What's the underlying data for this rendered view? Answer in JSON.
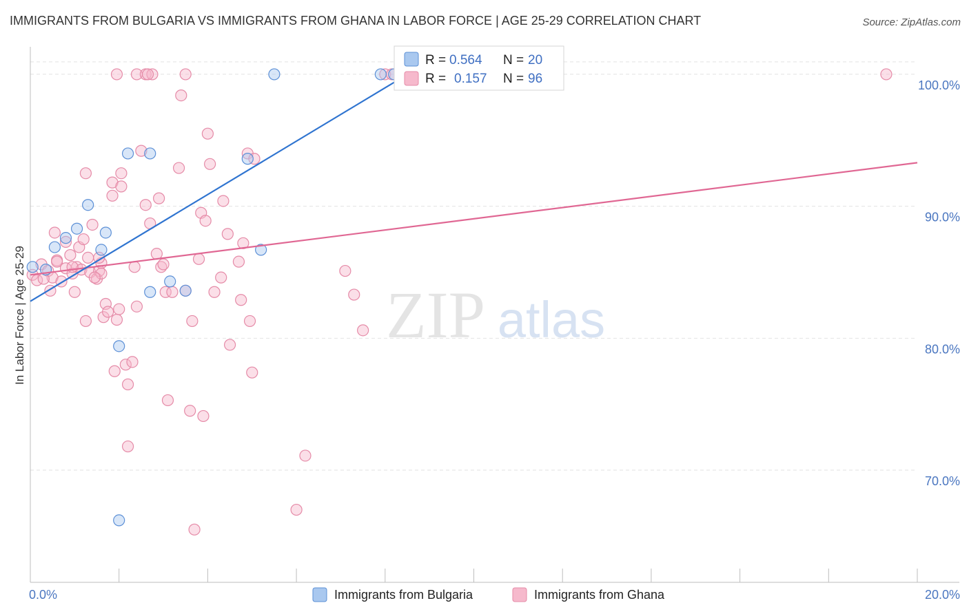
{
  "title": "IMMIGRANTS FROM BULGARIA VS IMMIGRANTS FROM GHANA IN LABOR FORCE | AGE 25-29 CORRELATION CHART",
  "source": "Source: ZipAtlas.com",
  "watermark": {
    "zip": "ZIP",
    "atlas": "atlas"
  },
  "colors": {
    "bulgaria_fill": "#a9c8ef",
    "bulgaria_stroke": "#5b8fd6",
    "bulgaria_line": "#2f74d0",
    "ghana_fill": "#f6b9cc",
    "ghana_stroke": "#e58aa7",
    "ghana_line": "#e06793",
    "tick_text": "#4a76c0"
  },
  "stats": {
    "r_label": "R =",
    "n_label": "N =",
    "bulgaria": {
      "r": "0.564",
      "n": "20"
    },
    "ghana": {
      "r": "0.157",
      "n": "96"
    }
  },
  "chart_data": {
    "type": "scatter",
    "xlabel": "",
    "ylabel": "In Labor Force | Age 25-29",
    "xlim": [
      0,
      20
    ],
    "ylim": [
      61.5,
      102.5
    ],
    "x_tick_labels": [
      {
        "value": 0,
        "label": "0.0%"
      },
      {
        "value": 20,
        "label": "20.0%"
      }
    ],
    "y_tick_labels": [
      {
        "value": 100,
        "label": "100.0%"
      },
      {
        "value": 90,
        "label": "90.0%"
      },
      {
        "value": 80,
        "label": "80.0%"
      },
      {
        "value": 70,
        "label": "70.0%"
      }
    ],
    "grid": true,
    "legend": [
      "Immigrants from Bulgaria",
      "Immigrants from Ghana"
    ],
    "series": [
      {
        "name": "Immigrants from Bulgaria",
        "trend": {
          "x": [
            0,
            9.0
          ],
          "y": [
            82.8,
            101.0
          ]
        },
        "points": [
          [
            0.05,
            85.4
          ],
          [
            0.35,
            85.2
          ],
          [
            0.55,
            86.9
          ],
          [
            0.8,
            87.6
          ],
          [
            1.05,
            88.3
          ],
          [
            1.3,
            90.1
          ],
          [
            1.6,
            86.7
          ],
          [
            1.7,
            88.0
          ],
          [
            2.2,
            94.0
          ],
          [
            2.7,
            94.0
          ],
          [
            2.7,
            83.5
          ],
          [
            3.15,
            84.3
          ],
          [
            3.5,
            83.6
          ],
          [
            4.9,
            93.6
          ],
          [
            5.2,
            86.7
          ],
          [
            5.5,
            100.0
          ],
          [
            7.9,
            100.0
          ],
          [
            8.2,
            100.0
          ],
          [
            2.0,
            79.4
          ],
          [
            2.0,
            66.2
          ]
        ]
      },
      {
        "name": "Immigrants from Ghana",
        "trend": {
          "x": [
            0,
            20.0
          ],
          "y": [
            84.8,
            93.3
          ]
        },
        "points": [
          [
            0.05,
            84.8
          ],
          [
            0.15,
            84.4
          ],
          [
            0.25,
            85.6
          ],
          [
            0.4,
            85.1
          ],
          [
            0.45,
            83.6
          ],
          [
            0.5,
            84.6
          ],
          [
            0.55,
            88.0
          ],
          [
            0.6,
            85.9
          ],
          [
            0.7,
            84.3
          ],
          [
            0.8,
            85.3
          ],
          [
            0.8,
            87.3
          ],
          [
            0.9,
            86.3
          ],
          [
            0.95,
            84.9
          ],
          [
            1.0,
            83.5
          ],
          [
            1.05,
            85.4
          ],
          [
            1.1,
            86.9
          ],
          [
            1.15,
            85.2
          ],
          [
            1.2,
            87.5
          ],
          [
            1.25,
            92.5
          ],
          [
            1.25,
            81.3
          ],
          [
            1.35,
            85.0
          ],
          [
            1.4,
            88.6
          ],
          [
            1.5,
            84.5
          ],
          [
            1.55,
            85.1
          ],
          [
            1.6,
            85.7
          ],
          [
            1.6,
            84.9
          ],
          [
            1.65,
            81.6
          ],
          [
            1.7,
            82.6
          ],
          [
            1.75,
            82.0
          ],
          [
            1.85,
            91.8
          ],
          [
            1.85,
            90.8
          ],
          [
            1.9,
            77.5
          ],
          [
            1.95,
            81.4
          ],
          [
            2.0,
            82.2
          ],
          [
            2.05,
            92.5
          ],
          [
            2.05,
            91.5
          ],
          [
            2.15,
            78.0
          ],
          [
            2.2,
            76.5
          ],
          [
            2.2,
            71.8
          ],
          [
            2.3,
            78.2
          ],
          [
            2.35,
            85.4
          ],
          [
            2.4,
            82.4
          ],
          [
            2.5,
            94.2
          ],
          [
            2.6,
            90.1
          ],
          [
            2.7,
            88.7
          ],
          [
            2.85,
            86.4
          ],
          [
            2.9,
            90.6
          ],
          [
            2.95,
            85.4
          ],
          [
            3.0,
            85.6
          ],
          [
            3.05,
            83.5
          ],
          [
            3.1,
            75.3
          ],
          [
            3.2,
            83.5
          ],
          [
            3.35,
            92.9
          ],
          [
            3.4,
            98.4
          ],
          [
            3.5,
            83.6
          ],
          [
            3.6,
            74.5
          ],
          [
            3.65,
            81.3
          ],
          [
            3.8,
            86.0
          ],
          [
            3.85,
            89.5
          ],
          [
            3.9,
            74.1
          ],
          [
            3.95,
            88.9
          ],
          [
            4.0,
            95.5
          ],
          [
            4.05,
            93.2
          ],
          [
            4.15,
            83.5
          ],
          [
            4.3,
            84.6
          ],
          [
            4.35,
            90.4
          ],
          [
            4.45,
            87.9
          ],
          [
            4.5,
            79.5
          ],
          [
            4.7,
            85.8
          ],
          [
            4.75,
            82.9
          ],
          [
            4.8,
            87.2
          ],
          [
            4.9,
            94.0
          ],
          [
            4.95,
            81.3
          ],
          [
            5.0,
            77.4
          ],
          [
            5.05,
            93.6
          ],
          [
            3.7,
            65.5
          ],
          [
            6.0,
            67.0
          ],
          [
            6.2,
            71.1
          ],
          [
            7.1,
            85.1
          ],
          [
            7.3,
            83.3
          ],
          [
            7.5,
            80.6
          ],
          [
            1.95,
            100.0
          ],
          [
            2.4,
            100.0
          ],
          [
            2.6,
            100.0
          ],
          [
            2.75,
            100.0
          ],
          [
            3.5,
            100.0
          ],
          [
            8.0,
            100.0
          ],
          [
            8.15,
            100.0
          ],
          [
            19.3,
            100.0
          ],
          [
            2.65,
            100.0
          ],
          [
            0.6,
            85.8
          ],
          [
            0.95,
            85.4
          ],
          [
            1.3,
            86.1
          ],
          [
            1.55,
            86.1
          ],
          [
            0.3,
            84.5
          ],
          [
            1.45,
            84.6
          ]
        ]
      }
    ]
  }
}
